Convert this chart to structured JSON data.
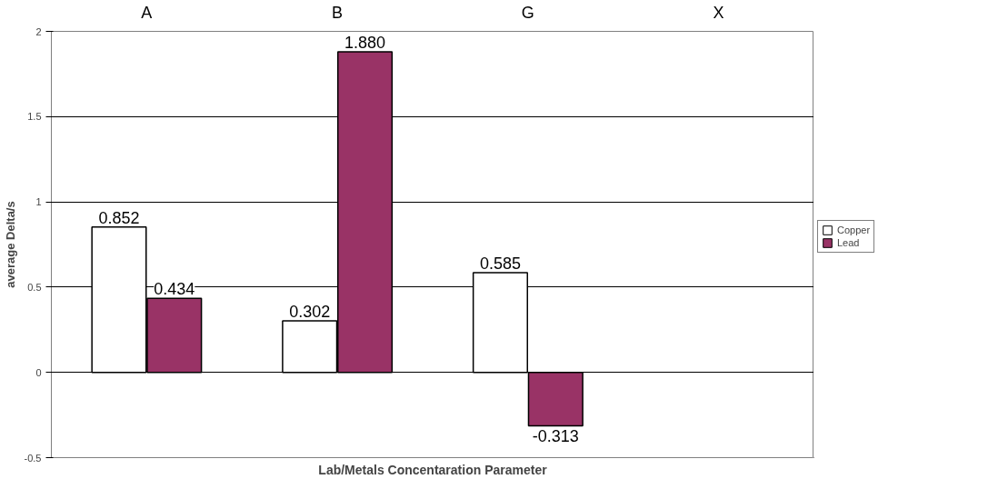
{
  "chart_data": {
    "type": "bar",
    "categories": [
      "A",
      "B",
      "G",
      "X"
    ],
    "series": [
      {
        "name": "Copper",
        "color": "#ffffff",
        "values": [
          0.852,
          0.302,
          0.585,
          null
        ],
        "value_labels": [
          "0.852",
          "0.302",
          "0.585",
          null
        ]
      },
      {
        "name": "Lead",
        "color": "#993366",
        "values": [
          0.434,
          1.88,
          -0.313,
          null
        ],
        "value_labels": [
          "0.434",
          "1.880",
          "-0.313",
          null
        ]
      }
    ],
    "xlabel": "Lab/Metals Concentaration Parameter",
    "ylabel": "average Delta/s",
    "ylim": [
      -0.5,
      2
    ],
    "yticks": [
      -0.5,
      0,
      0.5,
      1,
      1.5,
      2
    ],
    "grid": "y",
    "legend": "right"
  }
}
